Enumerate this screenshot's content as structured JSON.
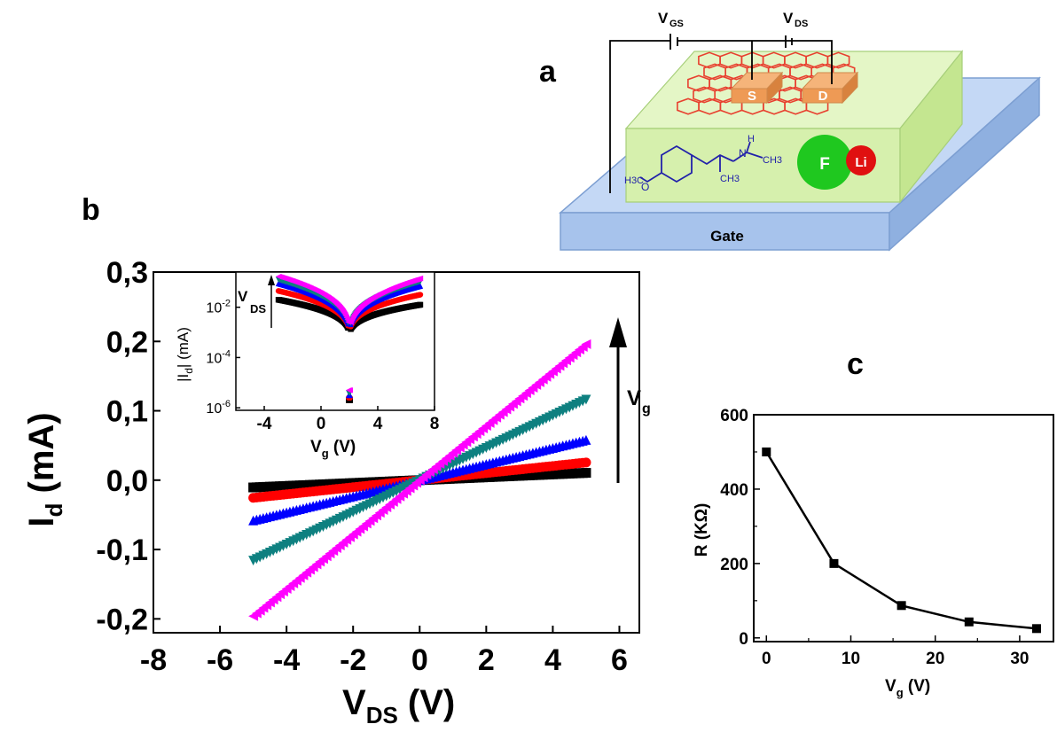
{
  "panel_labels": {
    "a": "a",
    "b": "b",
    "c": "c"
  },
  "schematic": {
    "gate_label": "Gate",
    "vgs_label": "V",
    "vgs_sub": "GS",
    "vds_label": "V",
    "vds_sub": "DS",
    "source_label": "S",
    "drain_label": "D",
    "fluorine_label": "F",
    "lithium_label": "Li",
    "molecule_labels": {
      "h3c": "H3C",
      "o": "O",
      "nh": "H",
      "n": "N",
      "ch3_n": "CH3",
      "ch3_bottom": "CH3"
    },
    "colors": {
      "gate": "#aec8ef",
      "electrolyte": "#daf3b4",
      "graphene": "#e8402f",
      "contact": "#f0a060",
      "fluorine": "#1fc81f",
      "lithium": "#e01010",
      "molecule": "#2222aa"
    }
  },
  "chart_data": [
    {
      "id": "main",
      "type": "scatter",
      "title": "",
      "xlabel": "V",
      "xlabel_sub": "DS",
      "xlabel_unit": " (V)",
      "ylabel": "I",
      "ylabel_sub": "d",
      "ylabel_unit": " (mA)",
      "xlim": [
        -8,
        6.6
      ],
      "ylim": [
        -0.22,
        0.3
      ],
      "xticks": [
        -8,
        -6,
        -4,
        -2,
        0,
        2,
        4,
        6
      ],
      "yticks": [
        -0.2,
        -0.1,
        0.0,
        0.1,
        0.2,
        0.3
      ],
      "xtick_labels": [
        "-8",
        "-6",
        "-4",
        "-2",
        "0",
        "2",
        "4",
        "6"
      ],
      "ytick_labels": [
        "-0,2",
        "-0,1",
        "0,0",
        "0,1",
        "0,2",
        "0,3"
      ],
      "annotation": {
        "text": "V",
        "sub": "g"
      },
      "series": [
        {
          "color": "#000000",
          "marker": "square",
          "slope": 0.0021,
          "x": [
            -5,
            5
          ],
          "y": [
            -0.0105,
            0.0105
          ]
        },
        {
          "color": "#ff0000",
          "marker": "circle",
          "slope": 0.0051,
          "x": [
            -5,
            5
          ],
          "y": [
            -0.0255,
            0.0255
          ]
        },
        {
          "color": "#0000ff",
          "marker": "triangle-up",
          "slope": 0.0116,
          "x": [
            -5,
            5
          ],
          "y": [
            -0.058,
            0.058
          ]
        },
        {
          "color": "#0e8080",
          "marker": "triangle-down",
          "slope": 0.0232,
          "x": [
            -5,
            5
          ],
          "y": [
            -0.116,
            0.116
          ]
        },
        {
          "color": "#ff00ff",
          "marker": "triangle-left",
          "slope": 0.0392,
          "x": [
            -5,
            5
          ],
          "y": [
            -0.196,
            0.196
          ]
        }
      ]
    },
    {
      "id": "inset",
      "type": "scatter",
      "title": "",
      "xlabel": "V",
      "xlabel_sub": "g",
      "xlabel_unit": " (V)",
      "ylabel": "|I",
      "ylabel_sub": "d",
      "ylabel_unit": "| (mA)",
      "xlim": [
        -6,
        8
      ],
      "ylim_log10": [
        -6.1,
        -0.6
      ],
      "yscale": "log",
      "xticks": [
        -4,
        0,
        4,
        8
      ],
      "xtick_labels": [
        "-4",
        "0",
        "4",
        "8"
      ],
      "ytick_exponents": [
        -6,
        -4,
        -2
      ],
      "ytick_base": "10",
      "annotation": {
        "text": "V",
        "sub": "DS"
      },
      "dirac_point_V": 2,
      "x_range": [
        -3,
        7
      ],
      "series": [
        {
          "color": "#000000",
          "marker": "square",
          "log10_at_plus7": -1.9,
          "log10_at_minus3": -1.7
        },
        {
          "color": "#ff0000",
          "marker": "circle",
          "log10_at_plus7": -1.5,
          "log10_at_minus3": -1.35
        },
        {
          "color": "#0000ff",
          "marker": "triangle-up",
          "log10_at_plus7": -1.15,
          "log10_at_minus3": -1.05
        },
        {
          "color": "#0e8080",
          "marker": "triangle-down",
          "log10_at_plus7": -0.98,
          "log10_at_minus3": -0.9
        },
        {
          "color": "#ff00ff",
          "marker": "triangle-left",
          "log10_at_plus7": -0.85,
          "log10_at_minus3": -0.78
        }
      ]
    },
    {
      "id": "c",
      "type": "line",
      "title": "",
      "xlabel": "V",
      "xlabel_sub": "g",
      "xlabel_unit": " (V)",
      "ylabel": "R (KΩ)",
      "xlim": [
        -1.5,
        34
      ],
      "ylim": [
        -10,
        600
      ],
      "xticks": [
        0,
        10,
        20,
        30
      ],
      "yticks": [
        0,
        200,
        400,
        600
      ],
      "xtick_labels": [
        "0",
        "10",
        "20",
        "30"
      ],
      "ytick_labels": [
        "0",
        "200",
        "400",
        "600"
      ],
      "x": [
        0,
        8,
        16,
        24,
        32
      ],
      "y": [
        500,
        200,
        87,
        43,
        25
      ],
      "color": "#000000",
      "marker": "square"
    }
  ]
}
